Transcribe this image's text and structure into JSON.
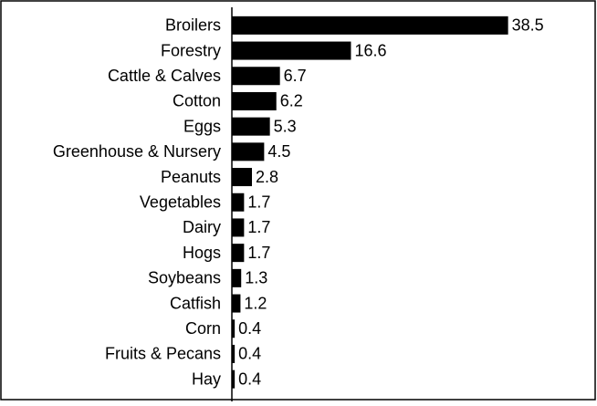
{
  "chart_data": {
    "type": "bar",
    "orientation": "horizontal",
    "categories": [
      "Broilers",
      "Forestry",
      "Cattle & Calves",
      "Cotton",
      "Eggs",
      "Greenhouse & Nursery",
      "Peanuts",
      "Vegetables",
      "Dairy",
      "Hogs",
      "Soybeans",
      "Catfish",
      "Corn",
      "Fruits & Pecans",
      "Hay"
    ],
    "values": [
      38.5,
      16.6,
      6.7,
      6.2,
      5.3,
      4.5,
      2.8,
      1.7,
      1.7,
      1.7,
      1.3,
      1.2,
      0.4,
      0.4,
      0.4
    ],
    "color": "#000000",
    "xlim": [
      0,
      50
    ]
  }
}
